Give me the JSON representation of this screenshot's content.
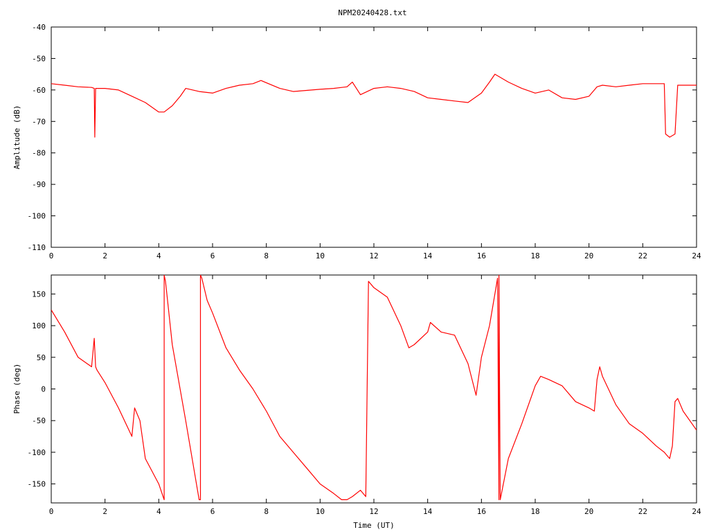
{
  "chart_data": [
    {
      "type": "line",
      "title": "NPM20240428.txt",
      "xlabel": "",
      "ylabel": "Amplitude (dB)",
      "xlim": [
        0,
        24
      ],
      "ylim": [
        -110,
        -40
      ],
      "xticks": [
        "0",
        "2",
        "4",
        "6",
        "8",
        "10",
        "12",
        "14",
        "16",
        "18",
        "20",
        "22",
        "24"
      ],
      "yticks": [
        "-40",
        "-50",
        "-60",
        "-70",
        "-80",
        "-90",
        "-100",
        "-110"
      ],
      "line_color": "#ff0000",
      "series": [
        {
          "x": [
            0,
            0.5,
            1,
            1.5,
            1.6,
            1.62,
            1.65,
            1.7,
            2,
            2.5,
            3,
            3.5,
            4,
            4.2,
            4.5,
            4.8,
            5,
            5.5,
            6,
            6.5,
            7,
            7.5,
            7.8,
            8.5,
            9,
            10,
            10.5,
            11,
            11.2,
            11.5,
            12,
            12.5,
            13,
            13.5,
            14,
            14.5,
            15,
            15.5,
            16,
            16.3,
            16.5,
            17,
            17.5,
            18,
            18.5,
            19,
            19.5,
            20,
            20.3,
            20.5,
            21,
            21.5,
            22,
            22.5,
            22.8,
            22.85,
            23,
            23.2,
            23.3,
            23.35,
            24
          ],
          "y": [
            -58,
            -58.5,
            -59,
            -59.2,
            -59.5,
            -75,
            -59.5,
            -59.5,
            -59.5,
            -60,
            -62,
            -64,
            -67,
            -67,
            -65,
            -62,
            -59.5,
            -60.5,
            -61,
            -59.5,
            -58.5,
            -58,
            -57,
            -59.5,
            -60.5,
            -59.8,
            -59.5,
            -59,
            -57.5,
            -61.5,
            -59.5,
            -59,
            -59.5,
            -60.5,
            -62.5,
            -63,
            -63.5,
            -64,
            -61,
            -57.5,
            -55,
            -57.5,
            -59.5,
            -61,
            -60,
            -62.5,
            -63,
            -62,
            -59,
            -58.5,
            -59,
            -58.5,
            -58,
            -58,
            -58,
            -74,
            -75,
            -74,
            -58.5,
            -58.5,
            -58.5
          ]
        }
      ]
    },
    {
      "type": "line",
      "title": "",
      "xlabel": "Time (UT)",
      "ylabel": "Phase (deg)",
      "xlim": [
        0,
        24
      ],
      "ylim": [
        -180,
        180
      ],
      "xticks": [
        "0",
        "2",
        "4",
        "6",
        "8",
        "10",
        "12",
        "14",
        "16",
        "18",
        "20",
        "22",
        "24"
      ],
      "yticks": [
        "150",
        "100",
        "50",
        "0",
        "-50",
        "-100",
        "-150"
      ],
      "line_color": "#ff0000",
      "series": [
        {
          "x": [
            0,
            0.5,
            1,
            1.5,
            1.6,
            1.65,
            1.7,
            2,
            2.5,
            3,
            3.1,
            3.3,
            3.5,
            4,
            4.2,
            4.2,
            4.25,
            4.3,
            4.5,
            5,
            5.5,
            5.55,
            5.55,
            5.6,
            5.8,
            6,
            6.5,
            7,
            7.5,
            8,
            8.5,
            9,
            9.5,
            10,
            10.5,
            10.8,
            11,
            11.2,
            11.5,
            11.7,
            11.8,
            11.9,
            12,
            12.5,
            13,
            13.3,
            13.5,
            14,
            14.1,
            14.5,
            15,
            15.5,
            15.8,
            16,
            16.3,
            16.6,
            16.65,
            16.65,
            16.7,
            17,
            17.5,
            18,
            18.2,
            18.5,
            19,
            19.5,
            20,
            20.2,
            20.3,
            20.4,
            20.5,
            21,
            21.5,
            22,
            22.5,
            22.8,
            22.9,
            23,
            23.1,
            23.2,
            23.3,
            23.5,
            24
          ],
          "y": [
            125,
            90,
            50,
            35,
            80,
            35,
            30,
            10,
            -30,
            -75,
            -30,
            -50,
            -110,
            -150,
            -175,
            180,
            170,
            150,
            70,
            -50,
            -175,
            -175,
            180,
            175,
            140,
            120,
            65,
            30,
            0,
            -35,
            -75,
            -100,
            -125,
            -150,
            -165,
            -175,
            -175,
            -170,
            -160,
            -170,
            170,
            165,
            160,
            145,
            100,
            65,
            70,
            90,
            105,
            90,
            85,
            40,
            -10,
            50,
            100,
            175,
            -175,
            180,
            -175,
            -110,
            -55,
            5,
            20,
            15,
            5,
            -20,
            -30,
            -35,
            15,
            35,
            20,
            -25,
            -55,
            -70,
            -90,
            -100,
            -105,
            -110,
            -90,
            -20,
            -15,
            -35,
            -65
          ]
        }
      ]
    }
  ]
}
